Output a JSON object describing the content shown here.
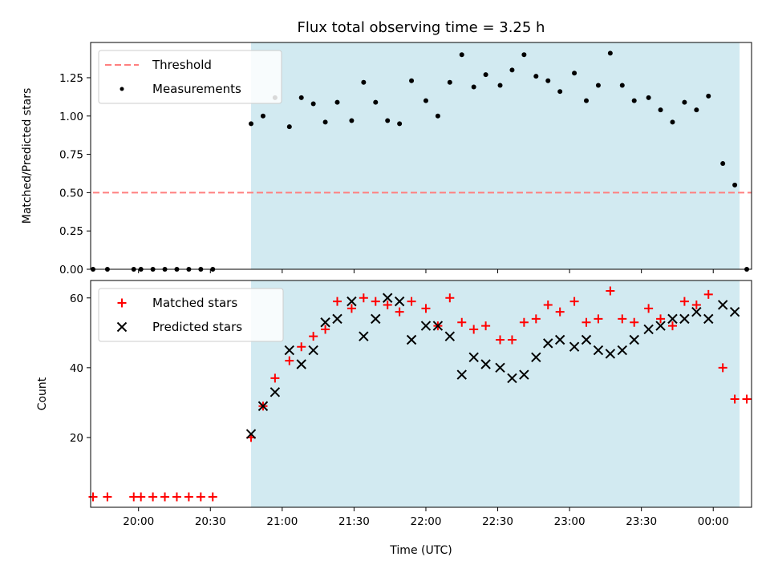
{
  "chart_data": [
    {
      "type": "scatter",
      "title": "Flux total observing time = 3.25 h",
      "xlabel": "",
      "ylabel": "Matched/Predicted stars",
      "ylim": [
        0,
        1.48
      ],
      "yticks": [
        "0.00",
        "0.25",
        "0.50",
        "0.75",
        "1.00",
        "1.25"
      ],
      "xlim_minutes": [
        1180,
        1456
      ],
      "shaded_span_minutes": [
        1247,
        1451
      ],
      "shade_color": "#add8e6",
      "threshold": {
        "name": "Threshold",
        "value": 0.5,
        "x_start_minutes": 1181,
        "x_end_minutes": 1456,
        "color": "#ff7f7f"
      },
      "legend": [
        "Threshold",
        "Measurements"
      ],
      "legend_position": "upper-left",
      "series": [
        {
          "name": "Measurements",
          "marker": "dot",
          "color": "#000000",
          "points": [
            [
              1181,
              0
            ],
            [
              1187,
              0
            ],
            [
              1198,
              0
            ],
            [
              1201,
              0
            ],
            [
              1206,
              0
            ],
            [
              1211,
              0
            ],
            [
              1216,
              0
            ],
            [
              1221,
              0
            ],
            [
              1226,
              0
            ],
            [
              1231,
              0
            ],
            [
              1247,
              0.95
            ],
            [
              1252,
              1.0
            ],
            [
              1257,
              1.12
            ],
            [
              1263,
              0.93
            ],
            [
              1268,
              1.12
            ],
            [
              1273,
              1.08
            ],
            [
              1278,
              0.96
            ],
            [
              1283,
              1.09
            ],
            [
              1289,
              0.97
            ],
            [
              1294,
              1.22
            ],
            [
              1299,
              1.09
            ],
            [
              1304,
              0.97
            ],
            [
              1309,
              0.95
            ],
            [
              1314,
              1.23
            ],
            [
              1320,
              1.1
            ],
            [
              1325,
              1.0
            ],
            [
              1330,
              1.22
            ],
            [
              1335,
              1.4
            ],
            [
              1340,
              1.19
            ],
            [
              1345,
              1.27
            ],
            [
              1351,
              1.2
            ],
            [
              1356,
              1.3
            ],
            [
              1361,
              1.4
            ],
            [
              1366,
              1.26
            ],
            [
              1371,
              1.23
            ],
            [
              1376,
              1.16
            ],
            [
              1382,
              1.28
            ],
            [
              1387,
              1.1
            ],
            [
              1392,
              1.2
            ],
            [
              1397,
              1.41
            ],
            [
              1402,
              1.2
            ],
            [
              1407,
              1.1
            ],
            [
              1413,
              1.12
            ],
            [
              1418,
              1.04
            ],
            [
              1423,
              0.96
            ],
            [
              1428,
              1.09
            ],
            [
              1433,
              1.04
            ],
            [
              1438,
              1.13
            ],
            [
              1444,
              0.69
            ],
            [
              1449,
              0.55
            ],
            [
              1454,
              0
            ]
          ]
        }
      ]
    },
    {
      "type": "scatter",
      "title": "",
      "xlabel": "Time (UTC)",
      "ylabel": "Count",
      "ylim": [
        0,
        65
      ],
      "yticks": [
        "20",
        "40",
        "60"
      ],
      "xlim_minutes": [
        1180,
        1456
      ],
      "xticks": [
        "20:00",
        "20:30",
        "21:00",
        "21:30",
        "22:00",
        "22:30",
        "23:00",
        "23:30",
        "00:00"
      ],
      "shaded_span_minutes": [
        1247,
        1451
      ],
      "shade_color": "#add8e6",
      "legend": [
        "Matched stars",
        "Predicted stars"
      ],
      "legend_position": "upper-left",
      "series": [
        {
          "name": "Matched stars",
          "marker": "plus",
          "color": "#ff0000",
          "points": [
            [
              1181,
              3
            ],
            [
              1187,
              3
            ],
            [
              1198,
              3
            ],
            [
              1201,
              3
            ],
            [
              1206,
              3
            ],
            [
              1211,
              3
            ],
            [
              1216,
              3
            ],
            [
              1221,
              3
            ],
            [
              1226,
              3
            ],
            [
              1231,
              3
            ],
            [
              1247,
              20
            ],
            [
              1252,
              29
            ],
            [
              1257,
              37
            ],
            [
              1263,
              42
            ],
            [
              1268,
              46
            ],
            [
              1273,
              49
            ],
            [
              1278,
              51
            ],
            [
              1283,
              59
            ],
            [
              1289,
              57
            ],
            [
              1294,
              60
            ],
            [
              1299,
              59
            ],
            [
              1304,
              58
            ],
            [
              1309,
              56
            ],
            [
              1314,
              59
            ],
            [
              1320,
              57
            ],
            [
              1325,
              52
            ],
            [
              1330,
              60
            ],
            [
              1335,
              53
            ],
            [
              1340,
              51
            ],
            [
              1345,
              52
            ],
            [
              1351,
              48
            ],
            [
              1356,
              48
            ],
            [
              1361,
              53
            ],
            [
              1366,
              54
            ],
            [
              1371,
              58
            ],
            [
              1376,
              56
            ],
            [
              1382,
              59
            ],
            [
              1387,
              53
            ],
            [
              1392,
              54
            ],
            [
              1397,
              62
            ],
            [
              1402,
              54
            ],
            [
              1407,
              53
            ],
            [
              1413,
              57
            ],
            [
              1418,
              54
            ],
            [
              1423,
              52
            ],
            [
              1428,
              59
            ],
            [
              1433,
              58
            ],
            [
              1438,
              61
            ],
            [
              1444,
              40
            ],
            [
              1449,
              31
            ],
            [
              1454,
              31
            ]
          ]
        },
        {
          "name": "Predicted stars",
          "marker": "x",
          "color": "#000000",
          "points": [
            [
              1247,
              21
            ],
            [
              1252,
              29
            ],
            [
              1257,
              33
            ],
            [
              1263,
              45
            ],
            [
              1268,
              41
            ],
            [
              1273,
              45
            ],
            [
              1278,
              53
            ],
            [
              1283,
              54
            ],
            [
              1289,
              59
            ],
            [
              1294,
              49
            ],
            [
              1299,
              54
            ],
            [
              1304,
              60
            ],
            [
              1309,
              59
            ],
            [
              1314,
              48
            ],
            [
              1320,
              52
            ],
            [
              1325,
              52
            ],
            [
              1330,
              49
            ],
            [
              1335,
              38
            ],
            [
              1340,
              43
            ],
            [
              1345,
              41
            ],
            [
              1351,
              40
            ],
            [
              1356,
              37
            ],
            [
              1361,
              38
            ],
            [
              1366,
              43
            ],
            [
              1371,
              47
            ],
            [
              1376,
              48
            ],
            [
              1382,
              46
            ],
            [
              1387,
              48
            ],
            [
              1392,
              45
            ],
            [
              1397,
              44
            ],
            [
              1402,
              45
            ],
            [
              1407,
              48
            ],
            [
              1413,
              51
            ],
            [
              1418,
              52
            ],
            [
              1423,
              54
            ],
            [
              1428,
              54
            ],
            [
              1433,
              56
            ],
            [
              1438,
              54
            ],
            [
              1444,
              58
            ],
            [
              1449,
              56
            ]
          ]
        }
      ]
    }
  ]
}
